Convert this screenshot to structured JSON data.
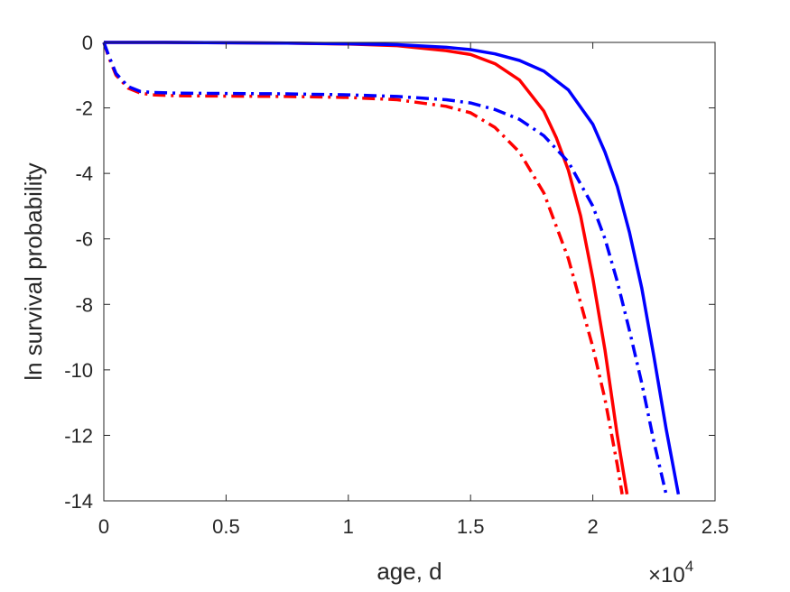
{
  "chart_data": {
    "type": "line",
    "title": "",
    "xlabel": "age, d",
    "ylabel": "ln survival probability",
    "x_multiplier_label": {
      "base": "×10",
      "exponent": "4"
    },
    "xlim": [
      0,
      2.5
    ],
    "ylim": [
      -14,
      0
    ],
    "x_unit_scale": 10000,
    "xticks": [
      0,
      0.5,
      1,
      1.5,
      2,
      2.5
    ],
    "xtick_labels": [
      "0",
      "0.5",
      "1",
      "1.5",
      "2",
      "2.5"
    ],
    "yticks": [
      0,
      -2,
      -4,
      -6,
      -8,
      -10,
      -12,
      -14
    ],
    "ytick_labels": [
      "0",
      "-2",
      "-4",
      "-6",
      "-8",
      "-10",
      "-12",
      "-14"
    ],
    "grid": false,
    "legend": "none",
    "series": [
      {
        "color": "#ff0000",
        "style": "solid",
        "x": [
          0,
          0.25,
          0.5,
          0.75,
          1.0,
          1.2,
          1.4,
          1.5,
          1.6,
          1.7,
          1.8,
          1.85,
          1.9,
          1.95,
          2.0,
          2.05,
          2.1,
          2.14
        ],
        "y": [
          0,
          0,
          -0.01,
          -0.02,
          -0.05,
          -0.1,
          -0.25,
          -0.37,
          -0.65,
          -1.15,
          -2.1,
          -2.9,
          -3.9,
          -5.3,
          -7.2,
          -9.4,
          -12.0,
          -13.8
        ]
      },
      {
        "color": "#0000ff",
        "style": "solid",
        "x": [
          0,
          0.25,
          0.5,
          0.75,
          1.0,
          1.2,
          1.4,
          1.5,
          1.6,
          1.7,
          1.8,
          1.9,
          2.0,
          2.05,
          2.1,
          2.15,
          2.2,
          2.25,
          2.3,
          2.35
        ],
        "y": [
          0,
          0,
          -0.01,
          -0.02,
          -0.04,
          -0.07,
          -0.15,
          -0.22,
          -0.35,
          -0.55,
          -0.88,
          -1.45,
          -2.5,
          -3.35,
          -4.4,
          -5.8,
          -7.5,
          -9.6,
          -11.8,
          -13.8
        ]
      },
      {
        "color": "#ff0000",
        "style": "dashdot",
        "x": [
          0,
          0.02,
          0.05,
          0.1,
          0.15,
          0.2,
          0.3,
          0.5,
          0.75,
          1.0,
          1.2,
          1.4,
          1.5,
          1.6,
          1.7,
          1.8,
          1.9,
          2.0,
          2.05,
          2.1,
          2.12
        ],
        "y": [
          0,
          -0.45,
          -1.0,
          -1.4,
          -1.55,
          -1.6,
          -1.63,
          -1.64,
          -1.65,
          -1.68,
          -1.75,
          -1.95,
          -2.15,
          -2.6,
          -3.35,
          -4.6,
          -6.6,
          -9.3,
          -10.9,
          -12.9,
          -13.8
        ]
      },
      {
        "color": "#0000ff",
        "style": "dashdot",
        "x": [
          0,
          0.02,
          0.05,
          0.1,
          0.15,
          0.2,
          0.3,
          0.5,
          0.75,
          1.0,
          1.2,
          1.4,
          1.5,
          1.6,
          1.7,
          1.8,
          1.9,
          2.0,
          2.05,
          2.1,
          2.15,
          2.2,
          2.25,
          2.3
        ],
        "y": [
          0,
          -0.4,
          -0.95,
          -1.35,
          -1.5,
          -1.53,
          -1.55,
          -1.56,
          -1.57,
          -1.6,
          -1.65,
          -1.75,
          -1.85,
          -2.05,
          -2.35,
          -2.85,
          -3.65,
          -5.0,
          -6.0,
          -7.3,
          -8.8,
          -10.4,
          -12.2,
          -13.8
        ]
      }
    ]
  }
}
